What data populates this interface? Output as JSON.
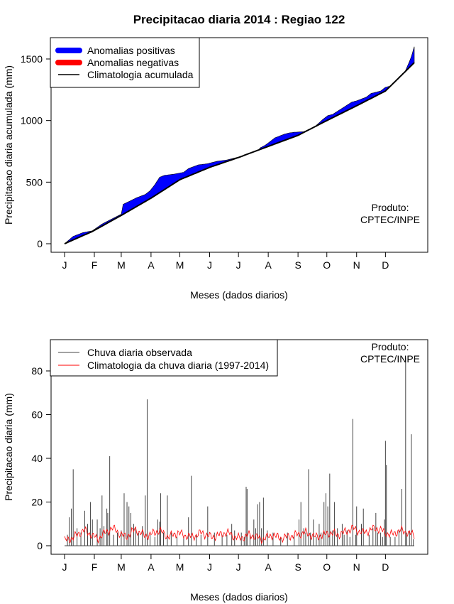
{
  "title": "Precipitacao diaria 2014 : Regiao 122",
  "months": [
    "J",
    "F",
    "M",
    "A",
    "M",
    "J",
    "J",
    "A",
    "S",
    "O",
    "N",
    "D"
  ],
  "product_label": [
    "Produto:",
    "CPTEC/INPE"
  ],
  "chart_data": [
    {
      "type": "area",
      "title": "Precipitacao diaria 2014 : Regiao 122",
      "xlabel": "Meses (dados diarios)",
      "ylabel": "Precipitacao diaria acumulada (mm)",
      "xlim": [
        1,
        365
      ],
      "ylim": [
        0,
        1600
      ],
      "yticks": [
        0,
        500,
        1000,
        1500
      ],
      "xtick_days": [
        1,
        32,
        60,
        91,
        121,
        152,
        182,
        213,
        244,
        274,
        305,
        335
      ],
      "legend": [
        "Anomalias positivas",
        "Anomalias negativas",
        "Climatologia acumulada"
      ],
      "colors": {
        "positive": "#0000ff",
        "negative": "#ff0000",
        "climatology": "#000000"
      },
      "climatology_points": [
        [
          1,
          0
        ],
        [
          30,
          100
        ],
        [
          60,
          230
        ],
        [
          91,
          370
        ],
        [
          121,
          520
        ],
        [
          152,
          620
        ],
        [
          182,
          700
        ],
        [
          213,
          790
        ],
        [
          244,
          880
        ],
        [
          274,
          1000
        ],
        [
          305,
          1120
        ],
        [
          335,
          1240
        ],
        [
          365,
          1470
        ]
      ],
      "observed_points": [
        [
          1,
          0
        ],
        [
          10,
          60
        ],
        [
          20,
          90
        ],
        [
          30,
          105
        ],
        [
          40,
          160
        ],
        [
          50,
          200
        ],
        [
          60,
          240
        ],
        [
          62,
          320
        ],
        [
          70,
          350
        ],
        [
          75,
          370
        ],
        [
          85,
          400
        ],
        [
          90,
          430
        ],
        [
          95,
          480
        ],
        [
          100,
          540
        ],
        [
          105,
          555
        ],
        [
          115,
          565
        ],
        [
          125,
          580
        ],
        [
          130,
          610
        ],
        [
          140,
          640
        ],
        [
          150,
          650
        ],
        [
          160,
          670
        ],
        [
          170,
          680
        ],
        [
          180,
          700
        ],
        [
          190,
          720
        ],
        [
          200,
          740
        ],
        [
          205,
          780
        ],
        [
          210,
          800
        ],
        [
          215,
          830
        ],
        [
          220,
          860
        ],
        [
          230,
          890
        ],
        [
          235,
          900
        ],
        [
          240,
          905
        ],
        [
          250,
          910
        ],
        [
          260,
          940
        ],
        [
          270,
          1010
        ],
        [
          275,
          1040
        ],
        [
          280,
          1050
        ],
        [
          290,
          1100
        ],
        [
          300,
          1150
        ],
        [
          305,
          1160
        ],
        [
          315,
          1190
        ],
        [
          320,
          1220
        ],
        [
          330,
          1240
        ],
        [
          335,
          1270
        ],
        [
          340,
          1280
        ],
        [
          350,
          1330
        ],
        [
          355,
          1390
        ],
        [
          360,
          1480
        ],
        [
          362,
          1520
        ],
        [
          365,
          1600
        ]
      ]
    },
    {
      "type": "line",
      "xlabel": "Meses (dados diarios)",
      "ylabel": "Precipitacao diaria (mm)",
      "xlim": [
        1,
        365
      ],
      "ylim": [
        0,
        90
      ],
      "yticks": [
        0,
        20,
        40,
        60,
        80
      ],
      "xtick_days": [
        1,
        32,
        60,
        91,
        121,
        152,
        182,
        213,
        244,
        274,
        305,
        335
      ],
      "legend": [
        "Chuva diaria observada",
        "Climatologia da chuva diaria (1997-2014)"
      ],
      "colors": {
        "observed": "#444444",
        "climatology": "#ff0000"
      },
      "observed_events": [
        [
          4,
          5
        ],
        [
          6,
          13
        ],
        [
          8,
          17
        ],
        [
          10,
          35
        ],
        [
          14,
          8
        ],
        [
          18,
          6
        ],
        [
          22,
          16
        ],
        [
          25,
          10
        ],
        [
          28,
          20
        ],
        [
          30,
          12
        ],
        [
          35,
          12
        ],
        [
          38,
          8
        ],
        [
          40,
          23
        ],
        [
          42,
          9
        ],
        [
          45,
          17
        ],
        [
          46,
          15
        ],
        [
          48,
          41
        ],
        [
          52,
          5
        ],
        [
          56,
          6
        ],
        [
          60,
          7
        ],
        [
          63,
          24
        ],
        [
          66,
          20
        ],
        [
          68,
          18
        ],
        [
          70,
          15
        ],
        [
          73,
          10
        ],
        [
          75,
          8
        ],
        [
          78,
          6
        ],
        [
          82,
          9
        ],
        [
          85,
          23
        ],
        [
          87,
          67
        ],
        [
          90,
          5
        ],
        [
          95,
          4
        ],
        [
          98,
          12
        ],
        [
          100,
          11
        ],
        [
          101,
          24
        ],
        [
          104,
          6
        ],
        [
          108,
          23
        ],
        [
          112,
          6
        ],
        [
          118,
          4
        ],
        [
          125,
          4
        ],
        [
          130,
          13
        ],
        [
          133,
          32
        ],
        [
          138,
          5
        ],
        [
          143,
          5
        ],
        [
          150,
          18
        ],
        [
          157,
          6
        ],
        [
          165,
          5
        ],
        [
          170,
          5
        ],
        [
          175,
          10
        ],
        [
          178,
          7
        ],
        [
          185,
          6
        ],
        [
          188,
          4
        ],
        [
          190,
          27
        ],
        [
          191,
          26
        ],
        [
          194,
          5
        ],
        [
          198,
          12
        ],
        [
          200,
          8
        ],
        [
          202,
          19
        ],
        [
          204,
          20
        ],
        [
          206,
          8
        ],
        [
          208,
          22
        ],
        [
          212,
          7
        ],
        [
          218,
          6
        ],
        [
          226,
          4
        ],
        [
          233,
          6
        ],
        [
          240,
          5
        ],
        [
          245,
          12
        ],
        [
          247,
          20
        ],
        [
          250,
          8
        ],
        [
          252,
          6
        ],
        [
          255,
          35
        ],
        [
          257,
          6
        ],
        [
          260,
          12
        ],
        [
          263,
          4
        ],
        [
          266,
          10
        ],
        [
          268,
          6
        ],
        [
          271,
          20
        ],
        [
          273,
          24
        ],
        [
          275,
          18
        ],
        [
          277,
          33
        ],
        [
          280,
          7
        ],
        [
          282,
          20
        ],
        [
          285,
          8
        ],
        [
          290,
          10
        ],
        [
          292,
          5
        ],
        [
          295,
          7
        ],
        [
          298,
          4
        ],
        [
          301,
          58
        ],
        [
          304,
          5
        ],
        [
          305,
          18
        ],
        [
          310,
          10
        ],
        [
          312,
          17
        ],
        [
          318,
          5
        ],
        [
          322,
          8
        ],
        [
          325,
          15
        ],
        [
          327,
          6
        ],
        [
          330,
          6
        ],
        [
          332,
          4
        ],
        [
          334,
          12
        ],
        [
          335,
          48
        ],
        [
          336,
          37
        ],
        [
          340,
          4
        ],
        [
          345,
          4
        ],
        [
          349,
          7
        ],
        [
          352,
          26
        ],
        [
          356,
          86
        ],
        [
          357,
          6
        ],
        [
          360,
          7
        ],
        [
          362,
          51
        ],
        [
          364,
          3
        ]
      ],
      "climatology_daily": [
        2.5,
        3,
        4,
        5.5,
        7,
        6,
        4.5,
        3,
        5,
        6.5,
        8,
        7,
        5,
        4,
        6,
        7.5,
        6,
        4.5,
        5,
        6,
        7,
        5.5,
        4,
        5,
        6,
        5,
        4.5,
        4,
        5,
        6,
        5,
        4,
        4.5,
        5,
        6,
        5.5,
        4,
        3.5,
        4,
        5,
        4.5,
        3.5,
        3,
        4,
        5,
        4,
        3.5,
        4,
        4.5,
        5,
        5.5,
        6,
        5,
        4,
        4.5,
        5,
        6,
        5.5,
        5,
        6,
        7,
        8,
        7,
        6,
        6.5,
        7.5,
        8,
        7,
        6,
        5,
        6,
        7,
        6.5,
        5.5,
        5
      ]
    }
  ]
}
